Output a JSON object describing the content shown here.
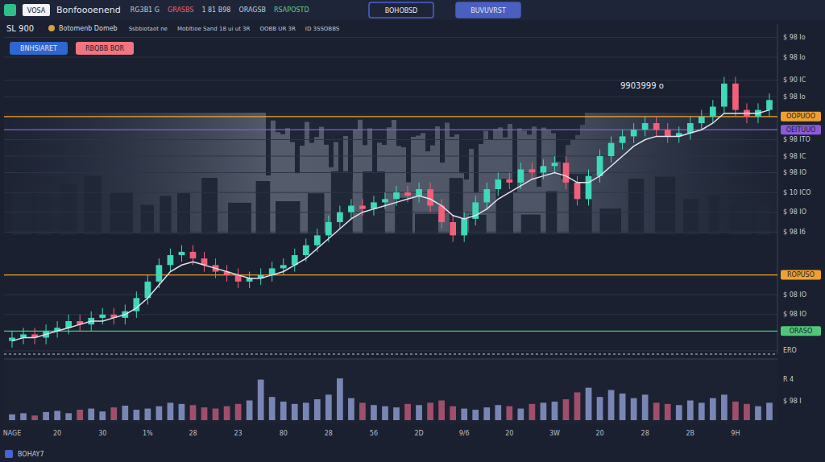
{
  "header": {
    "badge": "VOSA",
    "title": "Bonfoooenend",
    "items": [
      {
        "text": "RG3B1 G",
        "color": "#c8ccd6"
      },
      {
        "text": "GRASBS",
        "color": "#f06070"
      },
      {
        "text": "1 81 B98",
        "color": "#c8ccd6"
      },
      {
        "text": "ORAGSB",
        "color": "#c8ccd6"
      },
      {
        "text": "RSAPOSTD",
        "color": "#5fd08a"
      }
    ],
    "buttons": [
      {
        "text": "BOHOBSD",
        "color": "#4a63d0"
      },
      {
        "text": "BUVUVRST",
        "color": "#4a5fc0"
      }
    ]
  },
  "toolbar": {
    "symbol": "SL 900",
    "name": "Botomenb Domeb",
    "items": [
      "Ssbbiotaot ne",
      "Mobltioe Sand 18 ui ut 3R",
      "OOBB UR 3R",
      "ID 3SSOBBS"
    ],
    "buttons": [
      {
        "text": "BNHSIARET",
        "color": "#2f66d0"
      },
      {
        "text": "RBQBB BOR",
        "color": "#f07580"
      }
    ]
  },
  "footer": {
    "text": "BOHAY7"
  },
  "chart_data": {
    "type": "candlestick",
    "categories": [
      "NAGE",
      null,
      null,
      null,
      "20",
      null,
      null,
      null,
      "30",
      null,
      null,
      null,
      "1%",
      null,
      null,
      null,
      "28",
      null,
      null,
      null,
      "23",
      null,
      null,
      null,
      "80",
      null,
      null,
      null,
      "28",
      null,
      null,
      null,
      "56",
      null,
      null,
      null,
      "2D",
      null,
      null,
      null,
      "9/6",
      null,
      null,
      null,
      "20",
      null,
      null,
      null,
      "3W",
      null,
      null,
      null,
      "20",
      null,
      null,
      null,
      "28",
      null,
      null,
      null,
      "2B",
      null,
      null,
      null,
      "9H",
      null,
      null,
      null
    ],
    "open": [
      4,
      5,
      6,
      5,
      7,
      8,
      10,
      9,
      11,
      12,
      11,
      13,
      17,
      22,
      27,
      30,
      31,
      29,
      27,
      25,
      24,
      22,
      23,
      24,
      26,
      27,
      30,
      33,
      36,
      40,
      43,
      45,
      44,
      46,
      47,
      49,
      48,
      50,
      45,
      40,
      36,
      41,
      46,
      50,
      53,
      52,
      56,
      55,
      57,
      58,
      52,
      47,
      54,
      60,
      64,
      66,
      68,
      70,
      68,
      66,
      67,
      70,
      72,
      75,
      82,
      74,
      72,
      74
    ],
    "high": [
      7,
      8,
      8,
      9,
      10,
      12,
      12,
      13,
      14,
      14,
      15,
      19,
      24,
      29,
      32,
      33,
      33,
      31,
      29,
      27,
      26,
      25,
      26,
      28,
      29,
      32,
      35,
      38,
      42,
      45,
      47,
      47,
      48,
      49,
      51,
      51,
      52,
      52,
      47,
      42,
      43,
      48,
      52,
      55,
      55,
      58,
      58,
      59,
      60,
      60,
      54,
      56,
      62,
      66,
      68,
      70,
      72,
      72,
      70,
      69,
      72,
      74,
      77,
      84,
      84,
      76,
      76,
      79
    ],
    "low": [
      2,
      3,
      3,
      3,
      5,
      6,
      7,
      7,
      9,
      9,
      9,
      11,
      15,
      20,
      25,
      28,
      27,
      25,
      23,
      22,
      20,
      20,
      21,
      22,
      24,
      25,
      28,
      31,
      34,
      38,
      41,
      42,
      42,
      44,
      45,
      46,
      46,
      43,
      38,
      34,
      34,
      39,
      44,
      48,
      50,
      50,
      53,
      53,
      55,
      50,
      45,
      45,
      52,
      58,
      62,
      64,
      66,
      66,
      64,
      64,
      65,
      68,
      70,
      73,
      72,
      70,
      70,
      72
    ],
    "close": [
      5,
      6,
      5,
      7,
      8,
      10,
      9,
      11,
      12,
      11,
      13,
      17,
      22,
      27,
      30,
      31,
      29,
      27,
      25,
      24,
      22,
      23,
      24,
      26,
      27,
      30,
      33,
      36,
      40,
      43,
      45,
      44,
      46,
      47,
      49,
      48,
      50,
      45,
      40,
      36,
      41,
      46,
      50,
      53,
      52,
      56,
      55,
      57,
      58,
      52,
      47,
      54,
      60,
      64,
      66,
      68,
      70,
      68,
      66,
      67,
      70,
      72,
      75,
      82,
      74,
      72,
      74,
      77
    ],
    "series": [
      {
        "color": "#dfe3ec",
        "values": [
          4,
          5,
          5,
          6,
          7,
          8,
          9,
          10,
          10,
          11,
          12,
          14,
          17,
          21,
          25,
          27,
          28,
          27,
          26,
          25,
          24,
          23,
          23,
          24,
          25,
          27,
          29,
          32,
          35,
          38,
          41,
          43,
          44,
          45,
          46,
          47,
          48,
          47,
          45,
          42,
          41,
          42,
          44,
          47,
          49,
          51,
          53,
          54,
          55,
          54,
          52,
          52,
          54,
          57,
          60,
          63,
          65,
          66,
          66,
          66,
          67,
          68,
          70,
          73,
          73,
          73,
          73,
          74
        ]
      }
    ],
    "volume": [
      10,
      12,
      8,
      14,
      16,
      12,
      18,
      20,
      15,
      22,
      25,
      18,
      20,
      24,
      30,
      28,
      26,
      22,
      20,
      24,
      28,
      34,
      70,
      40,
      32,
      28,
      30,
      36,
      44,
      72,
      38,
      30,
      26,
      24,
      22,
      28,
      26,
      30,
      34,
      24,
      20,
      18,
      22,
      26,
      24,
      20,
      28,
      30,
      32,
      36,
      48,
      56,
      40,
      52,
      46,
      38,
      44,
      30,
      28,
      26,
      34,
      30,
      38,
      44,
      32,
      28,
      24,
      30
    ],
    "volume_lim": [
      0,
      100
    ],
    "volume_ticks": [
      {
        "value": 70,
        "label": "R 4"
      },
      {
        "value": 33,
        "label": "$ 98 I"
      }
    ],
    "ylim": [
      0,
      100
    ],
    "yticks": [
      {
        "value": 96,
        "label": "$ 98 Io"
      },
      {
        "value": 90,
        "label": "$ 98 Io"
      },
      {
        "value": 83,
        "label": "$ 90 IC"
      },
      {
        "value": 78,
        "label": "$ 98 Io"
      },
      {
        "value": 65,
        "label": "$ 98 ITO"
      },
      {
        "value": 60,
        "label": "$ 98 IC"
      },
      {
        "value": 55,
        "label": "$ 98 IO"
      },
      {
        "value": 49,
        "label": "$ 10 ICO"
      },
      {
        "value": 43,
        "label": "$ 98 IO"
      },
      {
        "value": 37,
        "label": "$ 98 I6"
      },
      {
        "value": 18,
        "label": "$ 08 IO"
      },
      {
        "value": 12,
        "label": "$ 98 IO"
      },
      {
        "value": 1,
        "label": "ERO"
      }
    ],
    "grid": true,
    "price_tags": [
      {
        "value": 72,
        "label": "OOPUOO",
        "color": "#f0a030"
      },
      {
        "value": 68,
        "label": "OEITUUO",
        "color": "#8a5ad8"
      },
      {
        "value": 24,
        "label": "ROPUSO",
        "color": "#f0a030"
      },
      {
        "value": 7,
        "label": "ORASO",
        "color": "#4fc878"
      }
    ],
    "annotations": [
      {
        "text": "9903999 o"
      }
    ]
  }
}
